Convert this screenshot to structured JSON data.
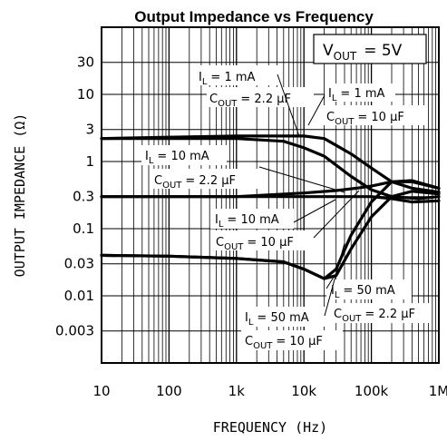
{
  "chart_data": {
    "type": "line",
    "title": "Output Impedance vs Frequency",
    "xlabel": "FREQUENCY (Hz)",
    "ylabel": "OUTPUT IMPEDANCE (Ω)",
    "x_scale": "log",
    "y_scale": "log",
    "xlim": [
      10,
      1000000
    ],
    "ylim": [
      0.001,
      100
    ],
    "x_tick_values": [
      10,
      100,
      1000,
      10000,
      100000,
      1000000
    ],
    "x_tick_labels": [
      "10",
      "100",
      "1k",
      "10k",
      "100k",
      "1M"
    ],
    "y_tick_values": [
      30,
      10,
      3,
      1,
      0.3,
      0.1,
      0.03,
      0.01,
      0.003
    ],
    "y_tick_labels": [
      "30",
      "10",
      "3",
      "1",
      "0.3",
      "0.1",
      "0.03",
      "0.01",
      "0.003"
    ],
    "grid": true,
    "annotation_vout": {
      "main": "V",
      "sub": "OUT",
      "value": "= 5V"
    },
    "series": [
      {
        "label_i": "= 1 mA",
        "label_c": "= 2.2 µF",
        "points": [
          [
            10,
            2.2
          ],
          [
            100,
            2.3
          ],
          [
            1000,
            2.4
          ],
          [
            10000,
            2.4
          ],
          [
            20000,
            2.2
          ],
          [
            50000,
            1.3
          ],
          [
            100000,
            0.8
          ],
          [
            200000,
            0.5
          ],
          [
            400000,
            0.4
          ],
          [
            1000000,
            0.35
          ]
        ]
      },
      {
        "label_i": "= 1 mA",
        "label_c": "= 10 µF",
        "points": [
          [
            10,
            2.2
          ],
          [
            100,
            2.2
          ],
          [
            1000,
            2.2
          ],
          [
            5000,
            2.0
          ],
          [
            10000,
            1.6
          ],
          [
            20000,
            1.2
          ],
          [
            50000,
            0.6
          ],
          [
            100000,
            0.38
          ],
          [
            200000,
            0.3
          ],
          [
            500000,
            0.28
          ],
          [
            1000000,
            0.3
          ]
        ]
      },
      {
        "label_i": "= 10 mA",
        "label_c": "= 2.2 µF",
        "points": [
          [
            10,
            0.3
          ],
          [
            100,
            0.3
          ],
          [
            1000,
            0.3
          ],
          [
            10000,
            0.34
          ],
          [
            30000,
            0.37
          ],
          [
            60000,
            0.4
          ],
          [
            100000,
            0.43
          ],
          [
            200000,
            0.5
          ],
          [
            400000,
            0.52
          ],
          [
            1000000,
            0.4
          ]
        ]
      },
      {
        "label_i": "= 10 mA",
        "label_c": "= 10 µF",
        "points": [
          [
            10,
            0.3
          ],
          [
            100,
            0.3
          ],
          [
            1000,
            0.3
          ],
          [
            10000,
            0.3
          ],
          [
            30000,
            0.3
          ],
          [
            100000,
            0.3
          ],
          [
            200000,
            0.28
          ],
          [
            400000,
            0.25
          ],
          [
            1000000,
            0.26
          ]
        ]
      },
      {
        "label_i": "= 50 mA",
        "label_c": "= 2.2 µF",
        "points": [
          [
            10,
            0.04
          ],
          [
            100,
            0.039
          ],
          [
            1000,
            0.036
          ],
          [
            5000,
            0.032
          ],
          [
            10000,
            0.025
          ],
          [
            20000,
            0.018
          ],
          [
            30000,
            0.025
          ],
          [
            50000,
            0.08
          ],
          [
            100000,
            0.25
          ],
          [
            200000,
            0.5
          ],
          [
            400000,
            0.5
          ],
          [
            1000000,
            0.4
          ]
        ]
      },
      {
        "label_i": "= 50 mA",
        "label_c": "= 10 µF",
        "points": [
          [
            10,
            0.04
          ],
          [
            100,
            0.039
          ],
          [
            1000,
            0.036
          ],
          [
            5000,
            0.032
          ],
          [
            10000,
            0.025
          ],
          [
            20000,
            0.018
          ],
          [
            30000,
            0.02
          ],
          [
            50000,
            0.05
          ],
          [
            100000,
            0.15
          ],
          [
            200000,
            0.3
          ],
          [
            400000,
            0.36
          ],
          [
            1000000,
            0.33
          ]
        ]
      }
    ]
  }
}
